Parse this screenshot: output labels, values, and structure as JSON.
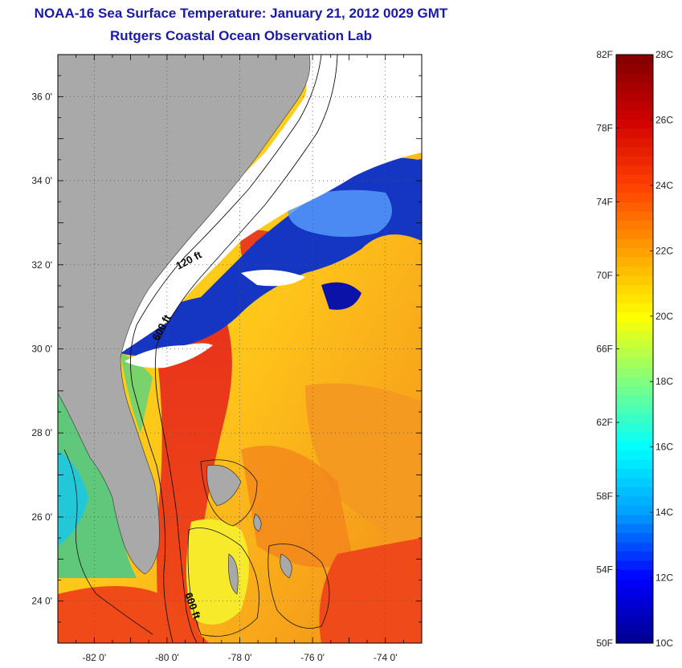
{
  "header": {
    "title": "NOAA-16 Sea Surface Temperature:  January 21, 2012 0029 GMT",
    "subtitle": "Rutgers Coastal Ocean Observation Lab"
  },
  "map": {
    "lon_range": [
      -83,
      -73
    ],
    "lat_range": [
      23,
      37
    ],
    "lon_ticks": [
      {
        "value": -82,
        "label": "-82 0'"
      },
      {
        "value": -80,
        "label": "-80 0'"
      },
      {
        "value": -78,
        "label": "-78 0'"
      },
      {
        "value": -76,
        "label": "-76 0'"
      },
      {
        "value": -74,
        "label": "-74 0'"
      }
    ],
    "lat_ticks": [
      {
        "value": 36,
        "label": "36 0'"
      },
      {
        "value": 34,
        "label": "34 0'"
      },
      {
        "value": 32,
        "label": "32 0'"
      },
      {
        "value": 30,
        "label": "30 0'"
      },
      {
        "value": 28,
        "label": "28 0'"
      },
      {
        "value": 26,
        "label": "26 0'"
      },
      {
        "value": 24,
        "label": "24 0'"
      }
    ],
    "contour_labels": [
      {
        "text": "120 ft"
      },
      {
        "text": "600 ft"
      },
      {
        "text": "600 ft"
      }
    ],
    "colors": {
      "land": "#a9a9a9",
      "cloud": "#ffffff",
      "sst_warm": "#f03a10",
      "sst_mid": "#ffd21e",
      "sst_cool": "#43c06a",
      "sst_cold": "#0a12a8"
    }
  },
  "colorbar": {
    "f_labels": [
      "82F",
      "78F",
      "74F",
      "70F",
      "66F",
      "62F",
      "58F",
      "54F",
      "50F"
    ],
    "c_labels": [
      "28C",
      "26C",
      "24C",
      "22C",
      "20C",
      "18C",
      "16C",
      "14C",
      "12C",
      "10C"
    ],
    "f_range": [
      50,
      82
    ],
    "c_range": [
      10,
      28
    ],
    "colormap": [
      "#00008f",
      "#0000ff",
      "#00a0ff",
      "#00ffff",
      "#80ff80",
      "#ffff00",
      "#ffa000",
      "#ff4000",
      "#d00000",
      "#800000"
    ]
  }
}
